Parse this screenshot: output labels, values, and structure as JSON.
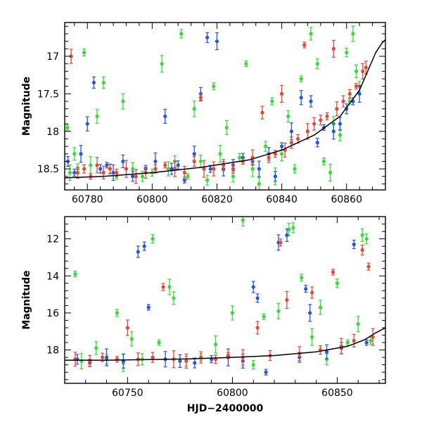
{
  "chart_data": [
    {
      "type": "scatter",
      "title": "",
      "xlabel": "",
      "ylabel": "Magnitude",
      "xlim": [
        60773,
        60872
      ],
      "ylim": [
        18.78,
        16.55
      ],
      "y_inverted": true,
      "xticks": [
        60780,
        60800,
        60820,
        60840,
        60860
      ],
      "yticks": [
        17,
        17.5,
        18,
        18.5
      ],
      "ytick_labels": [
        "17",
        "17.5",
        "18",
        "18.5"
      ],
      "grid": false,
      "series": [
        {
          "color": "#33dd33",
          "points": [
            [
              60773.8,
              17.95
            ],
            [
              60774.6,
              18.55
            ],
            [
              60776,
              18.3
            ],
            [
              60777,
              18.5
            ],
            [
              60779,
              16.95
            ],
            [
              60781,
              18.45
            ],
            [
              60783,
              17.8
            ],
            [
              60785,
              17.35
            ],
            [
              60787,
              18.5
            ],
            [
              60789,
              18.6
            ],
            [
              60791,
              17.6
            ],
            [
              60794,
              18.5
            ],
            [
              60797,
              18.6
            ],
            [
              60800,
              18.55
            ],
            [
              60803,
              17.1
            ],
            [
              60805,
              18.5
            ],
            [
              60807,
              18.4
            ],
            [
              60809,
              16.7
            ],
            [
              60811,
              18.6
            ],
            [
              60813,
              17.7
            ],
            [
              60815,
              18.4
            ],
            [
              60817,
              18.65
            ],
            [
              60819,
              17.4
            ],
            [
              60821,
              18.3
            ],
            [
              60823,
              17.95
            ],
            [
              60825,
              18.6
            ],
            [
              60827,
              18.35
            ],
            [
              60829,
              17.1
            ],
            [
              60831,
              18.5
            ],
            [
              60833,
              18.7
            ],
            [
              60835,
              18.2
            ],
            [
              60837,
              17.6
            ],
            [
              60838,
              18.6
            ],
            [
              60840,
              18.3
            ],
            [
              60842,
              17.8
            ],
            [
              60844,
              18.5
            ],
            [
              60846,
              17.3
            ],
            [
              60848,
              18.0
            ],
            [
              60849,
              16.7
            ],
            [
              60851,
              17.1
            ],
            [
              60853,
              18.4
            ],
            [
              60855,
              18.55
            ],
            [
              60856,
              17.9
            ],
            [
              60858,
              18.05
            ],
            [
              60860,
              16.95
            ],
            [
              60861,
              17.6
            ],
            [
              60862,
              16.7
            ],
            [
              60863,
              17.2
            ],
            [
              60864,
              17.4
            ]
          ]
        },
        {
          "color": "#2255ee",
          "points": [
            [
              60774,
              18.4
            ],
            [
              60776,
              18.55
            ],
            [
              60778,
              18.3
            ],
            [
              60780,
              17.9
            ],
            [
              60782,
              17.35
            ],
            [
              60784,
              18.5
            ],
            [
              60786,
              18.45
            ],
            [
              60788,
              18.55
            ],
            [
              60791,
              18.4
            ],
            [
              60794,
              18.6
            ],
            [
              60798,
              18.5
            ],
            [
              60801,
              18.4
            ],
            [
              60804,
              17.8
            ],
            [
              60806,
              18.5
            ],
            [
              60808,
              18.45
            ],
            [
              60810,
              18.65
            ],
            [
              60813,
              18.3
            ],
            [
              60815,
              17.5
            ],
            [
              60817,
              16.75
            ],
            [
              60818,
              18.5
            ],
            [
              60820,
              16.8
            ],
            [
              60822,
              18.5
            ],
            [
              60825,
              18.45
            ],
            [
              60828,
              18.35
            ],
            [
              60831,
              18.4
            ],
            [
              60833,
              18.5
            ],
            [
              60836,
              18.3
            ],
            [
              60838,
              18.6
            ],
            [
              60840,
              18.2
            ],
            [
              60843,
              18.0
            ],
            [
              60846,
              17.55
            ],
            [
              60849,
              17.6
            ],
            [
              60851,
              18.15
            ],
            [
              60853,
              17.95
            ],
            [
              60856,
              18.0
            ],
            [
              60858,
              17.9
            ],
            [
              60860,
              17.7
            ],
            [
              60862,
              17.6
            ],
            [
              60864,
              17.5
            ]
          ]
        },
        {
          "color": "#ee4433",
          "points": [
            [
              60775,
              17.0
            ],
            [
              60777,
              18.55
            ],
            [
              60779,
              18.5
            ],
            [
              60781,
              18.6
            ],
            [
              60783,
              18.45
            ],
            [
              60785,
              18.55
            ],
            [
              60787,
              18.5
            ],
            [
              60789,
              18.55
            ],
            [
              60792,
              18.5
            ],
            [
              60795,
              18.6
            ],
            [
              60798,
              18.55
            ],
            [
              60801,
              18.5
            ],
            [
              60804,
              18.45
            ],
            [
              60807,
              18.5
            ],
            [
              60810,
              18.55
            ],
            [
              60813,
              18.4
            ],
            [
              60815,
              17.55
            ],
            [
              60816,
              18.5
            ],
            [
              60819,
              18.5
            ],
            [
              60822,
              18.45
            ],
            [
              60825,
              18.5
            ],
            [
              60828,
              18.4
            ],
            [
              60831,
              18.35
            ],
            [
              60834,
              17.75
            ],
            [
              60836,
              18.35
            ],
            [
              60838,
              18.3
            ],
            [
              60840,
              17.5
            ],
            [
              60841,
              18.25
            ],
            [
              60843,
              18.15
            ],
            [
              60845,
              18.1
            ],
            [
              60847,
              16.85
            ],
            [
              60848,
              18.0
            ],
            [
              60850,
              17.9
            ],
            [
              60852,
              17.85
            ],
            [
              60854,
              17.8
            ],
            [
              60856,
              16.9
            ],
            [
              60857,
              17.7
            ],
            [
              60859,
              17.6
            ],
            [
              60861,
              17.5
            ],
            [
              60863,
              17.4
            ],
            [
              60865,
              17.2
            ],
            [
              60866,
              17.15
            ]
          ]
        }
      ],
      "model_curve": [
        [
          60773,
          18.62
        ],
        [
          60785,
          18.6
        ],
        [
          60800,
          18.55
        ],
        [
          60815,
          18.48
        ],
        [
          60830,
          18.38
        ],
        [
          60840,
          18.25
        ],
        [
          60850,
          18.05
        ],
        [
          60858,
          17.8
        ],
        [
          60864,
          17.45
        ],
        [
          60867,
          17.15
        ],
        [
          60869,
          16.95
        ],
        [
          60871,
          16.82
        ],
        [
          60872,
          16.78
        ]
      ]
    },
    {
      "type": "scatter",
      "title": "",
      "xlabel": "HJD−2400000",
      "ylabel": "Magnitude",
      "xlim": [
        60720,
        60873
      ],
      "ylim": [
        19.8,
        10.8
      ],
      "y_inverted": true,
      "xticks": [
        60750,
        60800,
        60850
      ],
      "yticks": [
        12,
        14,
        16,
        18
      ],
      "ytick_labels": [
        "12",
        "14",
        "16",
        "18"
      ],
      "grid": false,
      "series": [
        {
          "color": "#33dd33",
          "points": [
            [
              60725,
              13.9
            ],
            [
              60728,
              18.6
            ],
            [
              60735,
              17.9
            ],
            [
              60740,
              18.5
            ],
            [
              60745,
              16.0
            ],
            [
              60748,
              18.7
            ],
            [
              60752,
              17.4
            ],
            [
              60757,
              18.5
            ],
            [
              60762,
              12.0
            ],
            [
              60765,
              17.6
            ],
            [
              60770,
              14.6
            ],
            [
              60772,
              15.2
            ],
            [
              60778,
              18.6
            ],
            [
              60785,
              18.4
            ],
            [
              60792,
              17.7
            ],
            [
              60800,
              16.0
            ],
            [
              60805,
              11.0
            ],
            [
              60810,
              18.8
            ],
            [
              60815,
              16.2
            ],
            [
              60822,
              15.9
            ],
            [
              60827,
              11.5
            ],
            [
              60829,
              11.4
            ],
            [
              60833,
              14.1
            ],
            [
              60838,
              17.3
            ],
            [
              60842,
              15.7
            ],
            [
              60845,
              18.5
            ],
            [
              60850,
              14.4
            ],
            [
              60855,
              17.6
            ],
            [
              60860,
              16.6
            ],
            [
              60862,
              11.8
            ],
            [
              60864,
              12.0
            ],
            [
              60866,
              17.5
            ]
          ]
        },
        {
          "color": "#2255ee",
          "points": [
            [
              60726,
              18.5
            ],
            [
              60732,
              18.7
            ],
            [
              60740,
              18.4
            ],
            [
              60748,
              18.6
            ],
            [
              60755,
              12.7
            ],
            [
              60758,
              12.4
            ],
            [
              60760,
              15.7
            ],
            [
              60768,
              18.5
            ],
            [
              60775,
              18.6
            ],
            [
              60782,
              18.7
            ],
            [
              60790,
              18.5
            ],
            [
              60798,
              18.4
            ],
            [
              60805,
              18.6
            ],
            [
              60810,
              14.6
            ],
            [
              60812,
              15.2
            ],
            [
              60816,
              19.2
            ],
            [
              60822,
              12.2
            ],
            [
              60826,
              11.8
            ],
            [
              60832,
              18.4
            ],
            [
              60835,
              14.7
            ],
            [
              60837,
              16.0
            ],
            [
              60845,
              18.1
            ],
            [
              60852,
              17.9
            ],
            [
              60858,
              12.3
            ],
            [
              60864,
              17.6
            ]
          ]
        },
        {
          "color": "#ee4433",
          "points": [
            [
              60725,
              18.5
            ],
            [
              60732,
              18.6
            ],
            [
              60738,
              18.4
            ],
            [
              60745,
              18.5
            ],
            [
              60750,
              16.8
            ],
            [
              60755,
              18.5
            ],
            [
              60762,
              18.4
            ],
            [
              60767,
              14.6
            ],
            [
              60772,
              18.5
            ],
            [
              60778,
              18.6
            ],
            [
              60785,
              18.4
            ],
            [
              60792,
              18.5
            ],
            [
              60798,
              18.3
            ],
            [
              60805,
              18.4
            ],
            [
              60812,
              16.8
            ],
            [
              60818,
              18.3
            ],
            [
              60823,
              12.2
            ],
            [
              60826,
              15.3
            ],
            [
              60832,
              18.2
            ],
            [
              60838,
              14.9
            ],
            [
              60842,
              18.0
            ],
            [
              60848,
              13.8
            ],
            [
              60852,
              17.8
            ],
            [
              60858,
              17.5
            ],
            [
              60862,
              12.6
            ],
            [
              60865,
              13.5
            ],
            [
              60867,
              17.3
            ]
          ]
        }
      ],
      "model_curve": [
        [
          60720,
          18.55
        ],
        [
          60740,
          18.55
        ],
        [
          60760,
          18.52
        ],
        [
          60780,
          18.48
        ],
        [
          60800,
          18.4
        ],
        [
          60820,
          18.3
        ],
        [
          60840,
          18.1
        ],
        [
          60855,
          17.8
        ],
        [
          60863,
          17.45
        ],
        [
          60868,
          17.1
        ],
        [
          60873,
          16.8
        ]
      ]
    }
  ]
}
